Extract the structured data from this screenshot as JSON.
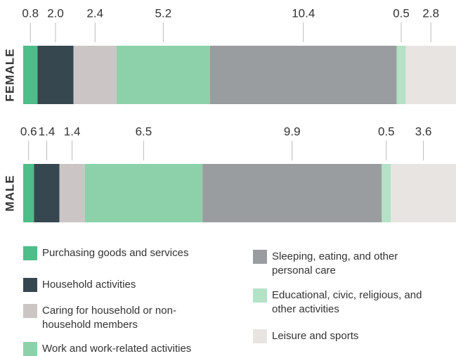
{
  "chart_data": {
    "type": "stacked-bar",
    "orientation": "horizontal",
    "categories": [
      "FEMALE",
      "MALE"
    ],
    "series": [
      {
        "name": "Purchasing goods and services",
        "color": "#4dbd8a",
        "values": [
          0.8,
          0.6
        ]
      },
      {
        "name": "Household activities",
        "color": "#364750",
        "values": [
          2.0,
          1.4
        ]
      },
      {
        "name": "Caring for household or non-household members",
        "color": "#cbc6c5",
        "values": [
          2.4,
          1.4
        ]
      },
      {
        "name": "Work and work-related activities",
        "color": "#8dd1ab",
        "values": [
          5.2,
          6.5
        ]
      },
      {
        "name": "Sleeping, eating, and other personal care",
        "color": "#9a9d9f",
        "values": [
          10.4,
          9.9
        ]
      },
      {
        "name": "Educational, civic, religious, and other activities",
        "color": "#b3e2c6",
        "values": [
          0.5,
          0.5
        ]
      },
      {
        "name": "Leisure and sports",
        "color": "#e8e4e1",
        "values": [
          2.8,
          3.6
        ]
      }
    ],
    "value_labels": [
      [
        "0.8",
        "2.0",
        "2.4",
        "5.2",
        "10.4",
        "0.5",
        "2.8"
      ],
      [
        "0.6",
        "1.4",
        "1.4",
        "6.5",
        "9.9",
        "0.5",
        "3.6"
      ]
    ]
  }
}
